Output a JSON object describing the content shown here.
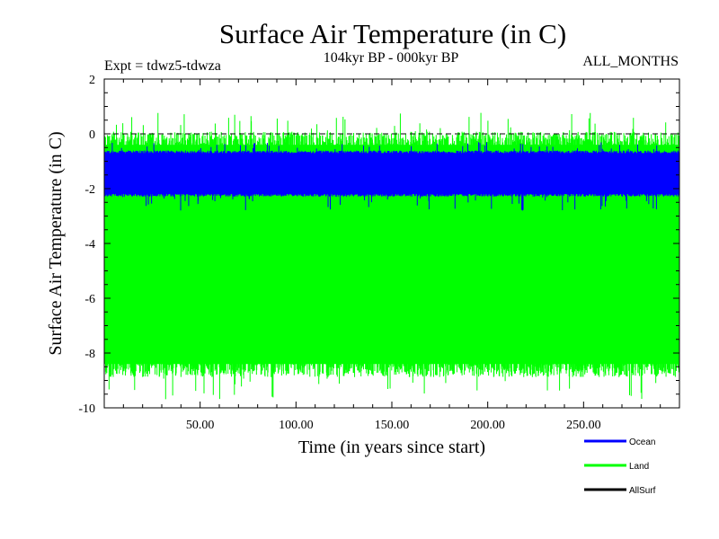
{
  "chart_data": {
    "type": "line",
    "title": "Surface Air Temperature (in C)",
    "subtitle": "104kyr BP - 000kyr BP",
    "experiment": "Expt = tdwz5-tdwza",
    "period": "ALL_MONTHS",
    "xlabel": "Time (in years since start)",
    "ylabel": "Surface Air Temperature (in C)",
    "xlim": [
      0,
      300
    ],
    "ylim": [
      -10,
      2
    ],
    "x_ticks": [
      50,
      100,
      150,
      200,
      250
    ],
    "x_tick_labels": [
      "50.00",
      "100.00",
      "150.00",
      "200.00",
      "250.00"
    ],
    "y_ticks": [
      -10,
      -8,
      -6,
      -4,
      -2,
      0,
      2
    ],
    "y_tick_labels": [
      "-10",
      "-8",
      "-6",
      "-4",
      "-2",
      "0",
      "2"
    ],
    "reference_line": 0,
    "series": [
      {
        "name": "Land",
        "color": "#00ff00",
        "y_min": -9.7,
        "y_max": 0.8,
        "mean": -4.7,
        "range_low": -8.4,
        "range_high": -0.4
      },
      {
        "name": "Ocean",
        "color": "#0000ff",
        "y_min": -2.8,
        "y_max": -0.3,
        "mean": -1.45,
        "range_low": -2.2,
        "range_high": -0.7
      },
      {
        "name": "AllSurf",
        "color": "#000000"
      }
    ],
    "legend_position": "bottom-right"
  }
}
